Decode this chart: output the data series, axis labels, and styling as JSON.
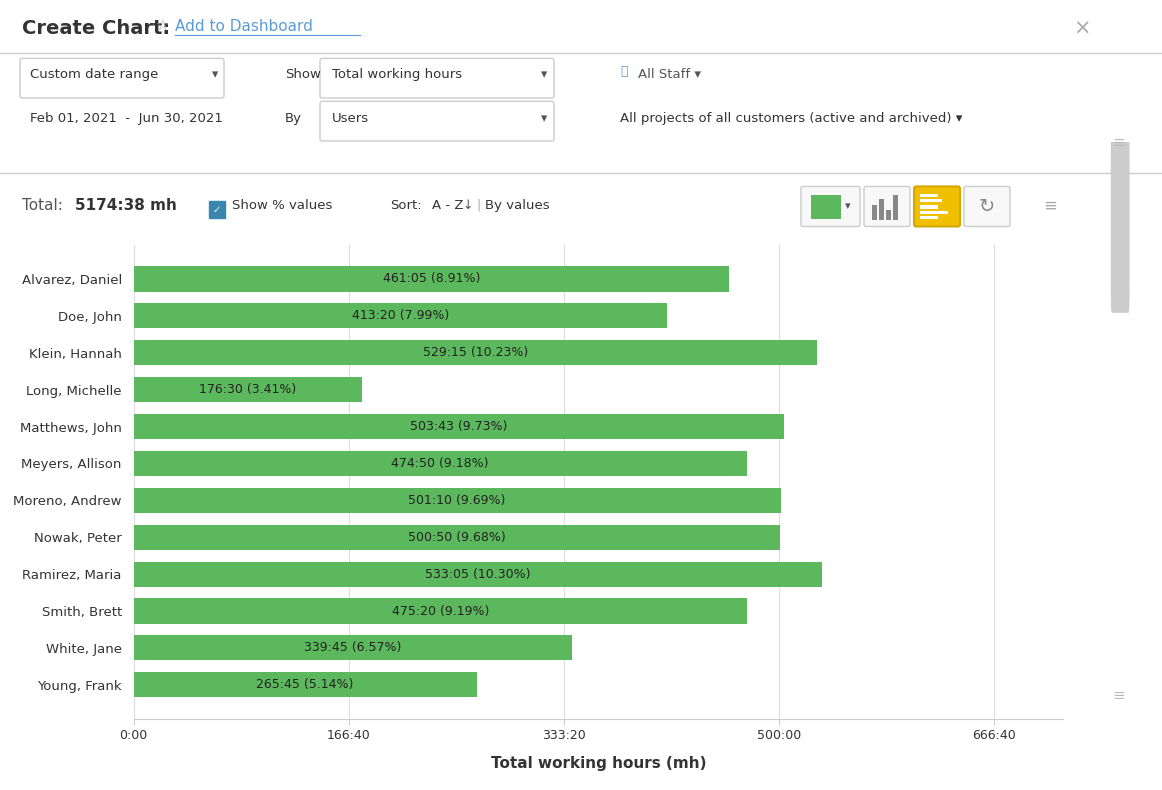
{
  "categories": [
    "Alvarez, Daniel",
    "Doe, John",
    "Klein, Hannah",
    "Long, Michelle",
    "Matthews, John",
    "Meyers, Allison",
    "Moreno, Andrew",
    "Nowak, Peter",
    "Ramirez, Maria",
    "Smith, Brett",
    "White, Jane",
    "Young, Frank"
  ],
  "labels": [
    "461:05 (8.91%)",
    "413:20 (7.99%)",
    "529:15 (10.23%)",
    "176:30 (3.41%)",
    "503:43 (9.73%)",
    "474:50 (9.18%)",
    "501:10 (9.69%)",
    "500:50 (9.68%)",
    "533:05 (10.30%)",
    "475:20 (9.19%)",
    "339:45 (6.57%)",
    "265:45 (5.14%)"
  ],
  "values_hours": [
    461.083,
    413.333,
    529.25,
    176.5,
    503.717,
    474.833,
    501.167,
    500.833,
    533.083,
    475.333,
    339.75,
    265.75
  ],
  "bar_color": "#5cb85c",
  "bg_color": "#ffffff",
  "grid_color": "#dddddd",
  "text_color": "#333333",
  "xlabel": "Total working hours (mh)",
  "xtick_labels": [
    "0:00",
    "166:40",
    "333:20",
    "500:00",
    "666:40"
  ],
  "xtick_values": [
    0,
    166.667,
    333.333,
    500.0,
    666.667
  ],
  "xlim": [
    0,
    720
  ]
}
